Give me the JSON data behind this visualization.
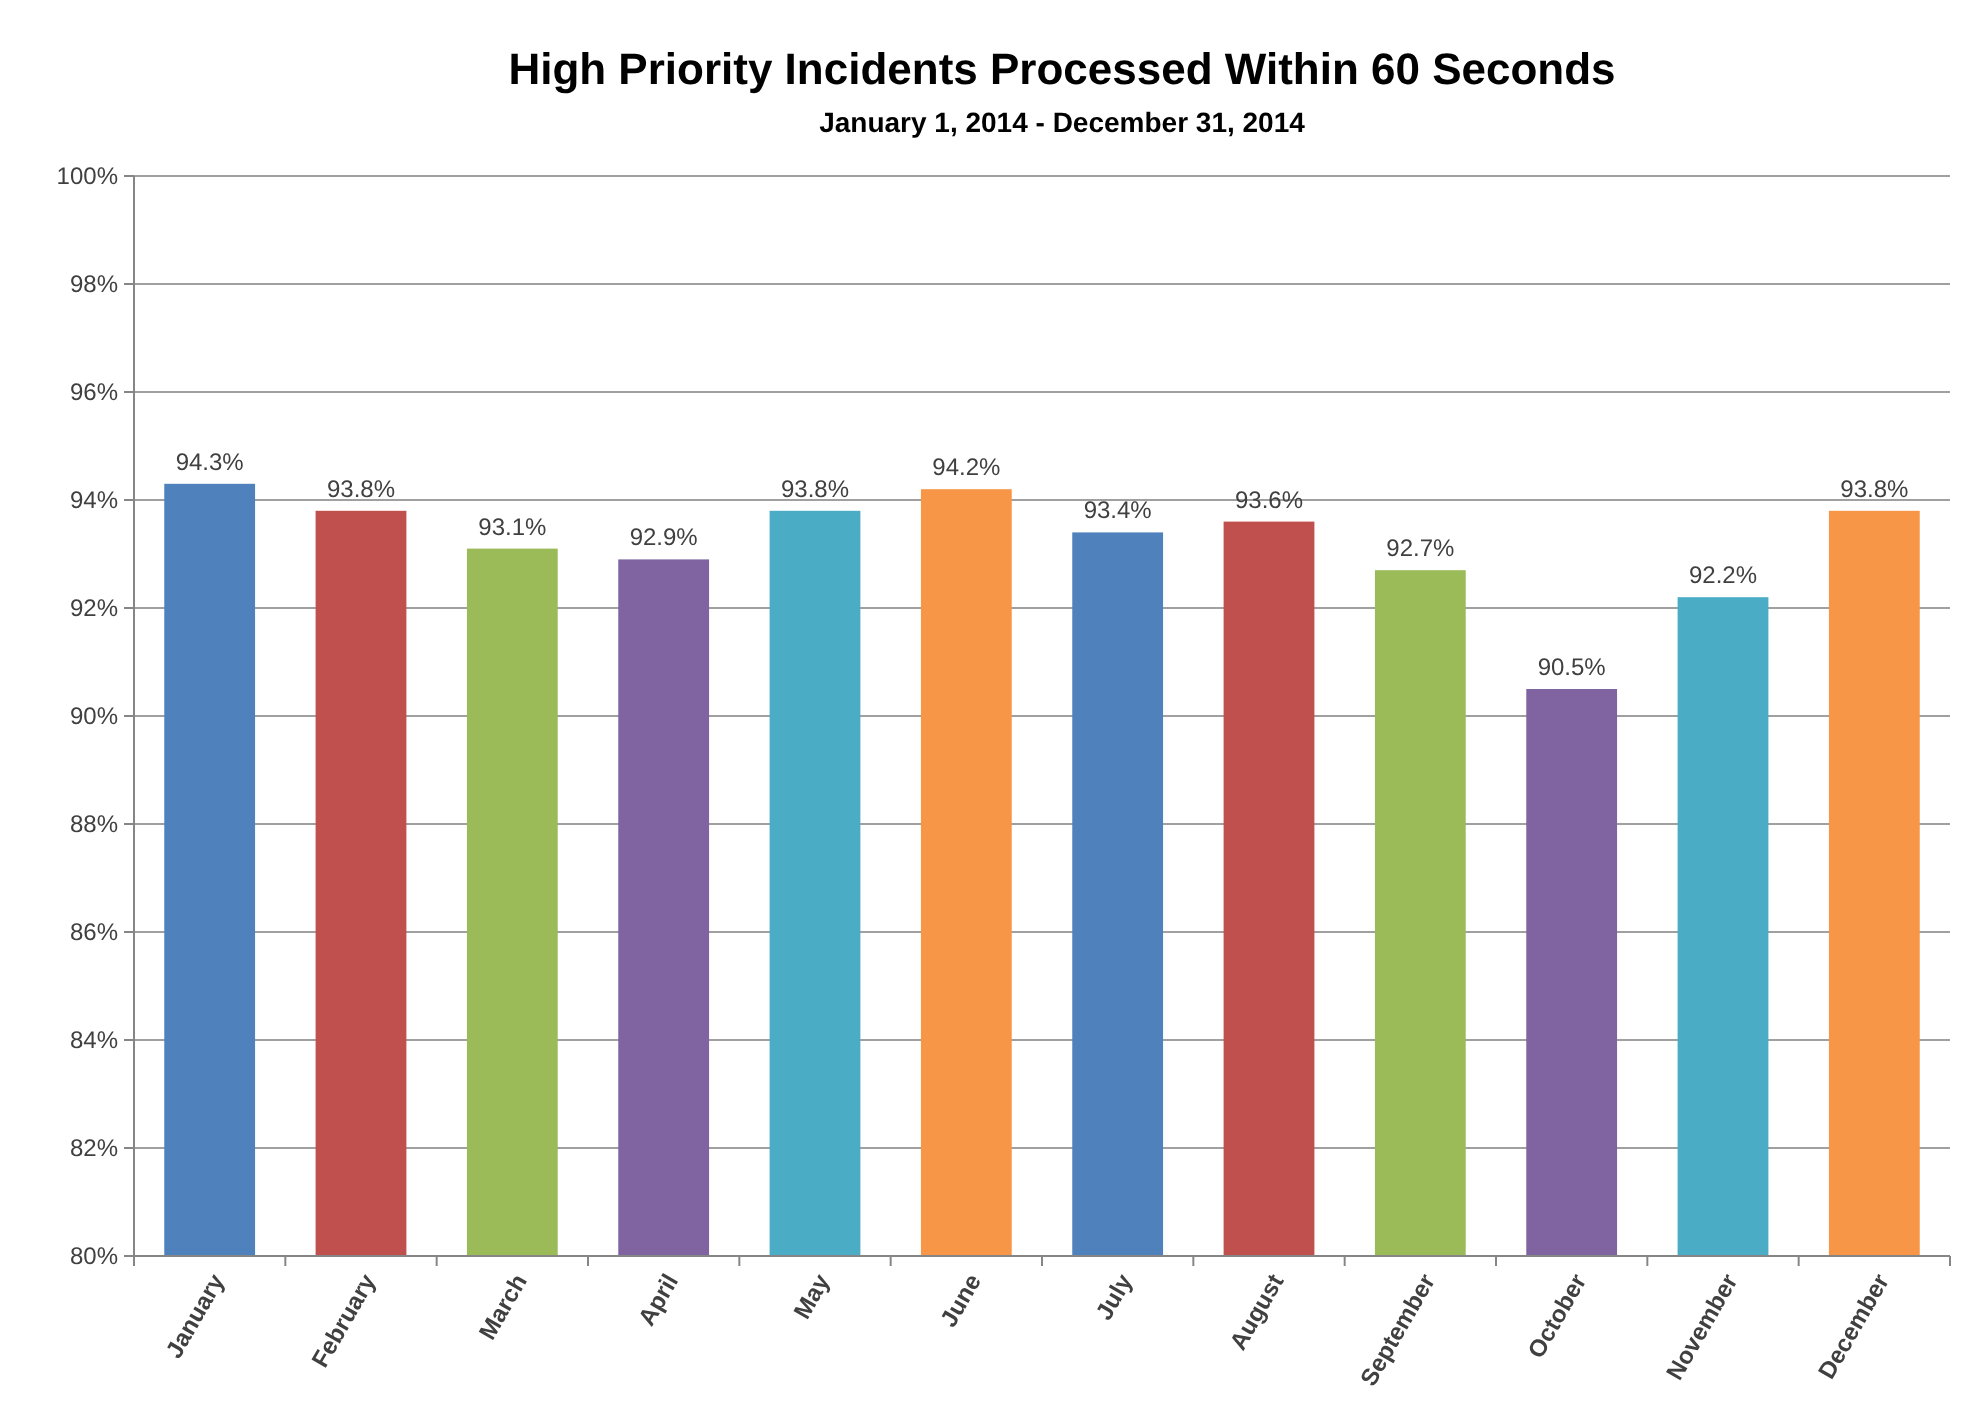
{
  "chart_data": {
    "type": "bar",
    "title": "High Priority Incidents Processed Within 60 Seconds",
    "subtitle": "January 1, 2014 - December 31, 2014",
    "categories": [
      "January",
      "February",
      "March",
      "April",
      "May",
      "June",
      "July",
      "August",
      "September",
      "October",
      "November",
      "December"
    ],
    "values": [
      94.3,
      93.8,
      93.1,
      92.9,
      93.8,
      94.2,
      93.4,
      93.6,
      92.7,
      90.5,
      92.2,
      93.8
    ],
    "colors": [
      "#4f81bd",
      "#c0504d",
      "#9bbb59",
      "#8064a2",
      "#4bacc6",
      "#f79646",
      "#4f81bd",
      "#c0504d",
      "#9bbb59",
      "#8064a2",
      "#4bacc6",
      "#f79646"
    ],
    "value_labels": [
      "94.3%",
      "93.8%",
      "93.1%",
      "92.9%",
      "93.8%",
      "94.2%",
      "93.4%",
      "93.6%",
      "92.7%",
      "90.5%",
      "92.2%",
      "93.8%"
    ],
    "ylim": [
      80,
      100
    ],
    "yticks": [
      {
        "value": 80,
        "label": "80%"
      },
      {
        "value": 82,
        "label": "82%"
      },
      {
        "value": 84,
        "label": "84%"
      },
      {
        "value": 86,
        "label": "86%"
      },
      {
        "value": 88,
        "label": "88%"
      },
      {
        "value": 90,
        "label": "90%"
      },
      {
        "value": 92,
        "label": "92%"
      },
      {
        "value": 94,
        "label": "94%"
      },
      {
        "value": 96,
        "label": "96%"
      },
      {
        "value": 98,
        "label": "98%"
      },
      {
        "value": 100,
        "label": "100%"
      }
    ],
    "grid": "y"
  }
}
